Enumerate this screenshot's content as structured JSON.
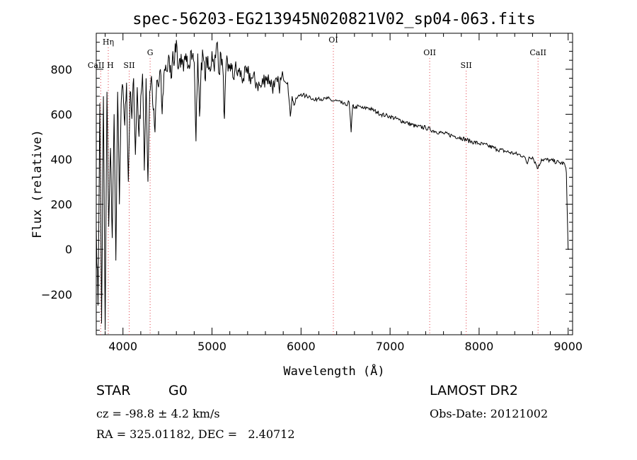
{
  "chart_data": {
    "type": "line",
    "title": "spec-56203-EG213945N020821V02_sp04-063.fits",
    "xlabel": "Wavelength (Å)",
    "ylabel": "Flux (relative)",
    "xlim": [
      3700,
      9050
    ],
    "ylim": [
      -380,
      960
    ],
    "xticks": [
      4000,
      5000,
      6000,
      7000,
      8000,
      9000
    ],
    "yticks": [
      -200,
      0,
      200,
      400,
      600,
      800
    ],
    "grid": false,
    "line_markers": [
      {
        "label": "Hη",
        "x": 3835,
        "label_level": 1
      },
      {
        "label": "CaII H",
        "x": 3750,
        "label_level": 2
      },
      {
        "label": "SII",
        "x": 4070,
        "label_level": 2
      },
      {
        "label": "G",
        "x": 4305,
        "label_level": 3
      },
      {
        "label": "OI",
        "x": 6363,
        "label_level": 0
      },
      {
        "label": "OII",
        "x": 7445,
        "label_level": 3
      },
      {
        "label": "SII",
        "x": 7855,
        "label_level": 4
      },
      {
        "label": "CaII",
        "x": 8662,
        "label_level": 3
      }
    ],
    "series": [
      {
        "name": "spectrum",
        "x": [
          3700,
          3720,
          3740,
          3760,
          3780,
          3800,
          3820,
          3840,
          3860,
          3880,
          3900,
          3920,
          3940,
          3960,
          3980,
          4000,
          4020,
          4040,
          4060,
          4080,
          4100,
          4120,
          4140,
          4160,
          4180,
          4200,
          4220,
          4240,
          4260,
          4280,
          4300,
          4320,
          4340,
          4360,
          4380,
          4400,
          4420,
          4440,
          4460,
          4480,
          4500,
          4520,
          4540,
          4560,
          4580,
          4600,
          4620,
          4640,
          4660,
          4680,
          4700,
          4720,
          4740,
          4760,
          4780,
          4800,
          4820,
          4840,
          4860,
          4880,
          4900,
          4920,
          4940,
          4960,
          4980,
          5000,
          5020,
          5040,
          5060,
          5080,
          5100,
          5120,
          5140,
          5160,
          5180,
          5200,
          5220,
          5240,
          5260,
          5280,
          5300,
          5350,
          5400,
          5450,
          5500,
          5550,
          5600,
          5650,
          5700,
          5750,
          5800,
          5850,
          5880,
          5900,
          5920,
          5950,
          6000,
          6050,
          6100,
          6150,
          6200,
          6250,
          6300,
          6350,
          6400,
          6450,
          6500,
          6540,
          6563,
          6580,
          6600,
          6650,
          6700,
          6750,
          6800,
          6850,
          6900,
          6950,
          7000,
          7100,
          7200,
          7300,
          7400,
          7500,
          7600,
          7700,
          7800,
          7900,
          8000,
          8100,
          8200,
          8300,
          8400,
          8500,
          8542,
          8560,
          8600,
          8662,
          8700,
          8800,
          8900,
          8960,
          8980,
          9000,
          9010
        ],
        "y": [
          100,
          -250,
          650,
          -330,
          680,
          -360,
          700,
          100,
          450,
          50,
          600,
          -50,
          700,
          200,
          650,
          720,
          550,
          740,
          300,
          700,
          580,
          760,
          420,
          720,
          500,
          680,
          780,
          350,
          760,
          300,
          700,
          770,
          620,
          520,
          750,
          720,
          800,
          600,
          780,
          820,
          790,
          850,
          760,
          880,
          840,
          930,
          800,
          850,
          820,
          790,
          840,
          860,
          820,
          880,
          860,
          830,
          480,
          870,
          590,
          830,
          860,
          760,
          850,
          800,
          790,
          880,
          820,
          850,
          920,
          780,
          870,
          810,
          580,
          830,
          790,
          820,
          800,
          760,
          810,
          780,
          790,
          760,
          780,
          760,
          740,
          720,
          770,
          750,
          720,
          730,
          760,
          740,
          590,
          680,
          640,
          670,
          690,
          680,
          680,
          660,
          675,
          665,
          670,
          660,
          660,
          650,
          640,
          655,
          520,
          640,
          630,
          635,
          625,
          630,
          620,
          610,
          600,
          595,
          590,
          575,
          560,
          545,
          540,
          525,
          515,
          505,
          495,
          480,
          470,
          460,
          445,
          435,
          425,
          415,
          380,
          410,
          410,
          360,
          400,
          395,
          385,
          380,
          340,
          0,
          0
        ]
      }
    ]
  },
  "info": {
    "object_class": "STAR",
    "subclass": "G0",
    "survey": "LAMOST DR2",
    "redshift_text": "cz = -98.8 ± 4.2 km/s",
    "obs_date_text": "Obs-Date: 20121002",
    "coords_text": "RA = 325.01182, DEC =   2.40712"
  }
}
